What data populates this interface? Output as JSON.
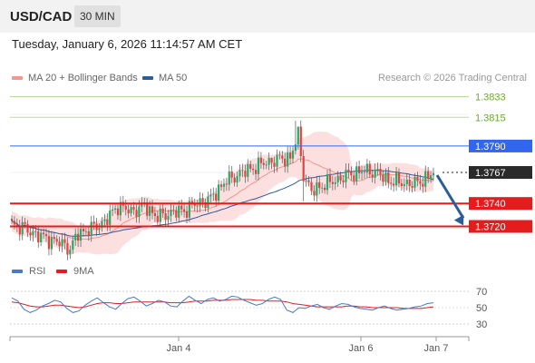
{
  "header": {
    "symbol": "USD/CAD",
    "interval": "30 MIN"
  },
  "timestamp": "Tuesday, January 6, 2026 11:14:57 AM CET",
  "legend": {
    "items": [
      {
        "label": "MA 20 + Bollinger Bands",
        "color": "#f4958e"
      },
      {
        "label": "MA 50",
        "color": "#2d5aa0"
      }
    ],
    "credit": "Research © 2026 Trading Central"
  },
  "colors": {
    "up": "#27aa6a",
    "down": "#e8413c",
    "resistance": "#3366ee",
    "support": "#e41c1c",
    "target": "#6aaa2a",
    "bollinger": "#fbdada",
    "ma20": "#f4958e",
    "ma50": "#2d5aa0",
    "rsi": "#4a78d0",
    "rsi_ma": "#e02020"
  },
  "chart_data": [
    {
      "type": "candlestick",
      "title": "USD/CAD 30 MIN",
      "x_ticks": [
        "Jan 4",
        "Jan 6",
        "Jan 7"
      ],
      "ylim": [
        1.3685,
        1.3845
      ],
      "levels": [
        {
          "value": 1.3833,
          "label": "1.3833",
          "kind": "target"
        },
        {
          "value": 1.3815,
          "label": "1.3815",
          "kind": "target"
        },
        {
          "value": 1.379,
          "label": "1.3790",
          "kind": "resistance"
        },
        {
          "value": 1.3767,
          "label": "1.3767",
          "kind": "current"
        },
        {
          "value": 1.374,
          "label": "1.3740",
          "kind": "support"
        },
        {
          "value": 1.372,
          "label": "1.3720",
          "kind": "support"
        }
      ],
      "anchors": [
        [
          0,
          1.3722
        ],
        [
          5,
          1.3718
        ],
        [
          10,
          1.3712
        ],
        [
          15,
          1.3708
        ],
        [
          20,
          1.3704
        ],
        [
          22,
          1.37
        ],
        [
          25,
          1.3714
        ],
        [
          30,
          1.3718
        ],
        [
          35,
          1.3724
        ],
        [
          40,
          1.3738
        ],
        [
          45,
          1.3733
        ],
        [
          50,
          1.3738
        ],
        [
          55,
          1.3728
        ],
        [
          60,
          1.3732
        ],
        [
          65,
          1.3734
        ],
        [
          70,
          1.374
        ],
        [
          75,
          1.3744
        ],
        [
          80,
          1.3758
        ],
        [
          85,
          1.3765
        ],
        [
          90,
          1.377
        ],
        [
          95,
          1.3775
        ],
        [
          100,
          1.3778
        ],
        [
          105,
          1.378
        ],
        [
          108,
          1.38
        ],
        [
          110,
          1.3765
        ],
        [
          113,
          1.375
        ],
        [
          117,
          1.3756
        ],
        [
          122,
          1.376
        ],
        [
          127,
          1.3765
        ],
        [
          132,
          1.3768
        ],
        [
          137,
          1.3768
        ],
        [
          142,
          1.376
        ],
        [
          147,
          1.3758
        ],
        [
          152,
          1.3757
        ],
        [
          157,
          1.3763
        ],
        [
          159,
          1.3767
        ]
      ],
      "spikes": [
        {
          "i": 98,
          "high": 1.378
        },
        {
          "i": 107,
          "high": 1.3812
        },
        {
          "i": 108,
          "high": 1.3805
        },
        {
          "i": 110,
          "low": 1.3742
        }
      ],
      "forecast": {
        "from": 1.3767,
        "to": 1.3728
      }
    },
    {
      "type": "line",
      "title": "RSI",
      "series": [
        {
          "name": "RSI",
          "values": [
            62,
            58,
            48,
            44,
            47,
            52,
            55,
            59,
            57,
            49,
            44,
            46,
            53,
            58,
            62,
            56,
            51,
            48,
            55,
            61,
            63,
            58,
            52,
            55,
            59,
            57,
            52,
            51,
            58,
            64,
            59,
            55,
            60,
            62,
            58,
            60,
            64,
            63,
            59,
            56,
            53,
            55,
            60,
            63,
            60,
            47,
            44,
            50,
            49,
            52,
            54,
            50,
            48,
            52,
            55,
            54,
            51,
            49,
            48,
            47,
            50,
            52,
            49,
            47,
            48,
            49,
            51,
            52,
            55,
            56
          ]
        },
        {
          "name": "9MA",
          "values": [
            57,
            56,
            54,
            52,
            51,
            51,
            52,
            53,
            53,
            52,
            51,
            50,
            51,
            53,
            55,
            56,
            56,
            55,
            55,
            56,
            57,
            57,
            57,
            57,
            57,
            57,
            56,
            56,
            56,
            57,
            58,
            58,
            58,
            59,
            59,
            59,
            60,
            60,
            60,
            60,
            59,
            59,
            58,
            58,
            58,
            57,
            55,
            54,
            53,
            52,
            51,
            51,
            51,
            51,
            51,
            52,
            52,
            51,
            51,
            50,
            50,
            50,
            50,
            50,
            49,
            49,
            49,
            49,
            50,
            51
          ]
        }
      ],
      "ylim": [
        25,
        80
      ],
      "y_ticks": [
        70,
        50,
        30
      ]
    }
  ]
}
